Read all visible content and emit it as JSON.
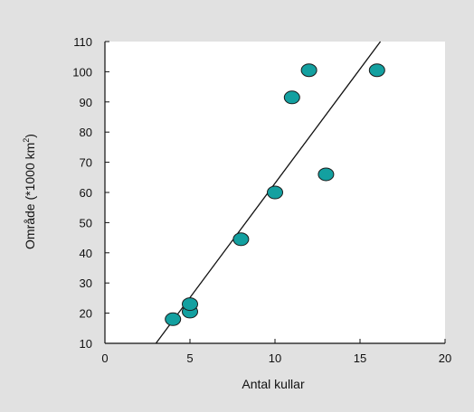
{
  "chart_data": {
    "type": "scatter",
    "title": "",
    "xlabel": "Antal kullar",
    "ylabel_text": "Område (*1000 km",
    "ylabel_sup": "2",
    "ylabel_close": ")",
    "xlim": [
      0,
      20
    ],
    "ylim": [
      10,
      110
    ],
    "x_ticks": [
      0,
      5,
      10,
      15,
      20
    ],
    "y_ticks": [
      10,
      20,
      30,
      40,
      50,
      60,
      70,
      80,
      90,
      100,
      110
    ],
    "grid": false,
    "points": [
      {
        "x": 4,
        "y": 18
      },
      {
        "x": 5,
        "y": 20.5
      },
      {
        "x": 5,
        "y": 23
      },
      {
        "x": 8,
        "y": 44.5
      },
      {
        "x": 10,
        "y": 60
      },
      {
        "x": 11,
        "y": 91.5
      },
      {
        "x": 12,
        "y": 100.5
      },
      {
        "x": 13,
        "y": 66
      },
      {
        "x": 16,
        "y": 100.5
      }
    ],
    "trendline": {
      "x1": 3,
      "y1": 10,
      "x2": 16.2,
      "y2": 110
    },
    "colors": {
      "marker_fill": "#13a0a0",
      "marker_stroke": "#1a1a1a",
      "background": "#e1e1e1",
      "plot_area": "#ffffff"
    }
  }
}
